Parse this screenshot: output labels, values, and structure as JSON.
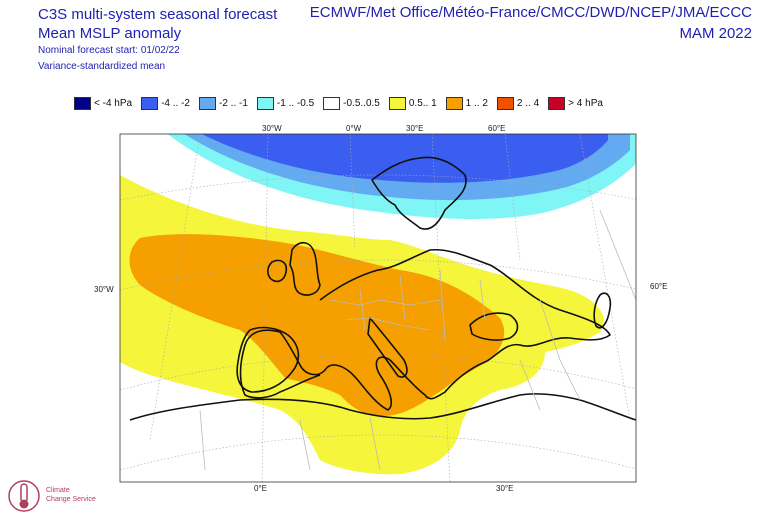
{
  "header": {
    "title_line1": "C3S multi-system seasonal forecast",
    "title_line2": "Mean MSLP anomaly",
    "forecast_start": "Nominal forecast start: 01/02/22",
    "method": "Variance-standardized mean",
    "systems": "ECMWF/Met Office/Météo-France/CMCC/DWD/NCEP/JMA/ECCC",
    "season": "MAM 2022"
  },
  "legend": [
    {
      "label": "< -4 hPa",
      "color": "#00008b"
    },
    {
      "label": "-4 .. -2",
      "color": "#3a5ef0"
    },
    {
      "label": "-2 .. -1",
      "color": "#64aaf0"
    },
    {
      "label": "-1 .. -0.5",
      "color": "#7ff5f5"
    },
    {
      "label": "-0.5..0.5",
      "color": "#ffffff"
    },
    {
      "label": "0.5.. 1",
      "color": "#f5f53c"
    },
    {
      "label": "1 .. 2",
      "color": "#f5a000"
    },
    {
      "label": "2 .. 4",
      "color": "#f05000"
    },
    {
      "label": "> 4 hPa",
      "color": "#c80028"
    }
  ],
  "map": {
    "top_labels": [
      "30°W",
      "0°W",
      "30°E",
      "60°E"
    ],
    "left_label": "30°W",
    "right_label": "60°E",
    "bottom_labels": [
      "0°E",
      "30°E"
    ]
  },
  "logo": {
    "line1": "Climate",
    "line2": "Change Service"
  }
}
